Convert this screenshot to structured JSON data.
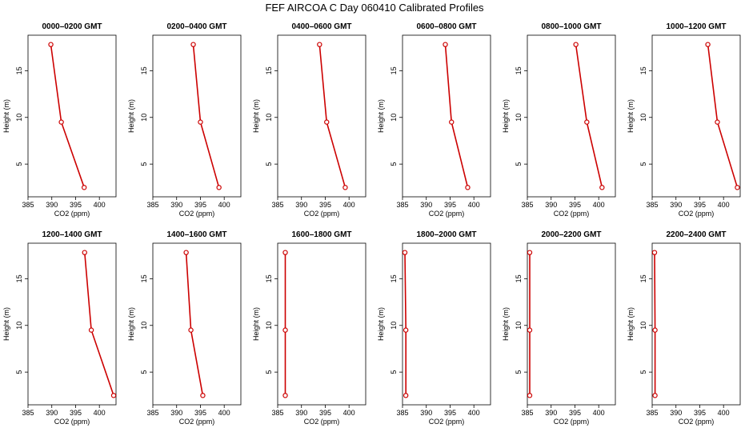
{
  "title": "FEF AIRCOA C  Day 060410  Calibrated Profiles",
  "chart_data": {
    "type": "line",
    "xlabel": "CO2 (ppm)",
    "ylabel": "Height (m)",
    "xlim": [
      385,
      403.5
    ],
    "ylim": [
      1.5,
      18.8
    ],
    "xticks": [
      385,
      390,
      395,
      400
    ],
    "yticks": [
      5,
      10,
      15
    ],
    "line_color": "#cc0000",
    "marker_color": "#cc0000",
    "panels": [
      {
        "title": "0000–0200 GMT",
        "heights": [
          17.8,
          9.5,
          2.5
        ],
        "values": [
          389.8,
          392.0,
          396.8
        ]
      },
      {
        "title": "0200–0400 GMT",
        "heights": [
          17.8,
          9.5,
          2.5
        ],
        "values": [
          393.5,
          395.0,
          398.9
        ]
      },
      {
        "title": "0400–0600 GMT",
        "heights": [
          17.8,
          9.5,
          2.5
        ],
        "values": [
          393.8,
          395.3,
          399.2
        ]
      },
      {
        "title": "0600–0800 GMT",
        "heights": [
          17.8,
          9.5,
          2.5
        ],
        "values": [
          394.0,
          395.3,
          398.7
        ]
      },
      {
        "title": "0800–1000 GMT",
        "heights": [
          17.8,
          9.5,
          2.5
        ],
        "values": [
          395.2,
          397.5,
          400.7
        ]
      },
      {
        "title": "1000–1200 GMT",
        "heights": [
          17.8,
          9.5,
          2.5
        ],
        "values": [
          396.7,
          398.7,
          402.9
        ]
      },
      {
        "title": "1200–1400 GMT",
        "heights": [
          17.8,
          9.5,
          2.5
        ],
        "values": [
          396.9,
          398.3,
          403.0
        ]
      },
      {
        "title": "1400–1600 GMT",
        "heights": [
          17.8,
          9.5,
          2.5
        ],
        "values": [
          392.0,
          393.0,
          395.5
        ]
      },
      {
        "title": "1600–1800 GMT",
        "heights": [
          17.8,
          9.5,
          2.5
        ],
        "values": [
          386.6,
          386.6,
          386.6
        ]
      },
      {
        "title": "1800–2000 GMT",
        "heights": [
          17.8,
          9.5,
          2.5
        ],
        "values": [
          385.5,
          385.7,
          385.7
        ]
      },
      {
        "title": "2000–2200 GMT",
        "heights": [
          17.8,
          9.5,
          2.5
        ],
        "values": [
          385.5,
          385.5,
          385.5
        ]
      },
      {
        "title": "2200–2400 GMT",
        "heights": [
          17.8,
          9.5,
          2.5
        ],
        "values": [
          385.5,
          385.6,
          385.6
        ]
      }
    ]
  }
}
